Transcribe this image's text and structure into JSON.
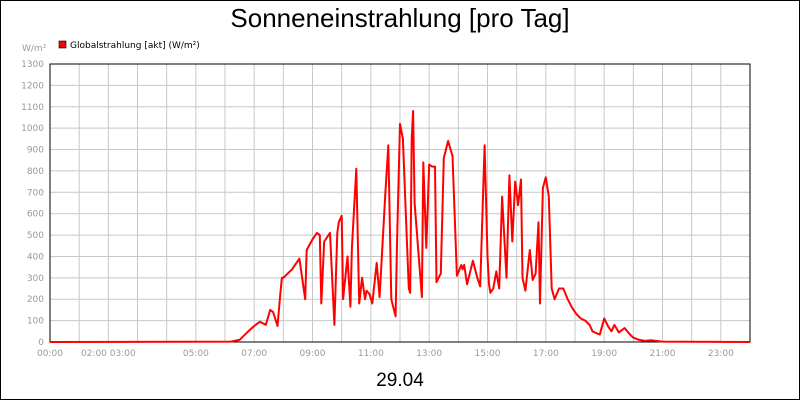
{
  "chart_data": {
    "type": "line",
    "title": "Sonneneinstrahlung [pro Tag]",
    "unit_label": "W/m²",
    "date_label": "29.04",
    "ylim": [
      0,
      1300
    ],
    "yticks": [
      0,
      100,
      200,
      300,
      400,
      500,
      600,
      700,
      800,
      900,
      1000,
      1100,
      1200,
      1300
    ],
    "xlim": [
      0,
      24
    ],
    "xticks": [
      {
        "h": 0,
        "label": "00:00"
      },
      {
        "h": 2,
        "label": "02:00 03:00"
      },
      {
        "h": 5,
        "label": "05:00"
      },
      {
        "h": 7,
        "label": "07:00"
      },
      {
        "h": 9,
        "label": "09:00"
      },
      {
        "h": 11,
        "label": "11:00"
      },
      {
        "h": 13,
        "label": "13:00"
      },
      {
        "h": 15,
        "label": "15:00"
      },
      {
        "h": 17,
        "label": "17:00"
      },
      {
        "h": 19,
        "label": "19:00"
      },
      {
        "h": 21,
        "label": "21:00"
      },
      {
        "h": 23,
        "label": "23:00"
      }
    ],
    "grid": true,
    "legend_position": "top-left",
    "series": [
      {
        "name": "Globalstrahlung [akt] (W/m²)",
        "color": "#ff0000",
        "x": [
          0,
          6.2,
          6.5,
          6.8,
          7.0,
          7.2,
          7.4,
          7.55,
          7.65,
          7.8,
          7.9,
          7.95,
          8.0,
          8.3,
          8.55,
          8.75,
          8.8,
          9.0,
          9.15,
          9.25,
          9.3,
          9.4,
          9.6,
          9.75,
          9.85,
          9.9,
          10.0,
          10.05,
          10.2,
          10.3,
          10.35,
          10.5,
          10.6,
          10.7,
          10.8,
          10.85,
          10.95,
          11.05,
          11.2,
          11.3,
          11.5,
          11.6,
          11.7,
          11.85,
          11.9,
          12.0,
          12.1,
          12.2,
          12.3,
          12.35,
          12.4,
          12.45,
          12.5,
          12.75,
          12.8,
          12.9,
          13.0,
          13.1,
          13.2,
          13.25,
          13.4,
          13.5,
          13.65,
          13.8,
          13.95,
          14.1,
          14.15,
          14.2,
          14.3,
          14.5,
          14.65,
          14.75,
          14.9,
          15.0,
          15.05,
          15.1,
          15.2,
          15.3,
          15.4,
          15.5,
          15.65,
          15.75,
          15.85,
          15.95,
          16.05,
          16.15,
          16.2,
          16.3,
          16.45,
          16.55,
          16.65,
          16.75,
          16.8,
          16.9,
          17.0,
          17.1,
          17.2,
          17.3,
          17.45,
          17.6,
          17.75,
          17.9,
          18.05,
          18.2,
          18.35,
          18.5,
          18.6,
          18.75,
          18.85,
          19.0,
          19.15,
          19.25,
          19.35,
          19.5,
          19.7,
          19.85,
          20.0,
          20.2,
          20.4,
          20.6,
          21.0,
          24.0
        ],
        "y": [
          0,
          2,
          10,
          50,
          75,
          95,
          80,
          150,
          140,
          75,
          230,
          300,
          300,
          340,
          390,
          200,
          430,
          480,
          510,
          500,
          180,
          470,
          510,
          80,
          510,
          560,
          590,
          200,
          400,
          165,
          440,
          810,
          180,
          300,
          200,
          240,
          225,
          180,
          370,
          210,
          700,
          920,
          200,
          120,
          480,
          1020,
          950,
          600,
          250,
          230,
          950,
          1080,
          650,
          210,
          840,
          440,
          830,
          820,
          820,
          280,
          320,
          860,
          940,
          870,
          310,
          360,
          340,
          360,
          270,
          380,
          300,
          260,
          920,
          400,
          270,
          230,
          250,
          330,
          250,
          680,
          300,
          780,
          470,
          750,
          640,
          760,
          300,
          240,
          430,
          290,
          320,
          560,
          180,
          720,
          770,
          680,
          250,
          200,
          250,
          250,
          200,
          160,
          130,
          110,
          100,
          80,
          50,
          40,
          35,
          110,
          70,
          50,
          80,
          45,
          65,
          40,
          20,
          10,
          5,
          8,
          2,
          0
        ]
      }
    ]
  }
}
